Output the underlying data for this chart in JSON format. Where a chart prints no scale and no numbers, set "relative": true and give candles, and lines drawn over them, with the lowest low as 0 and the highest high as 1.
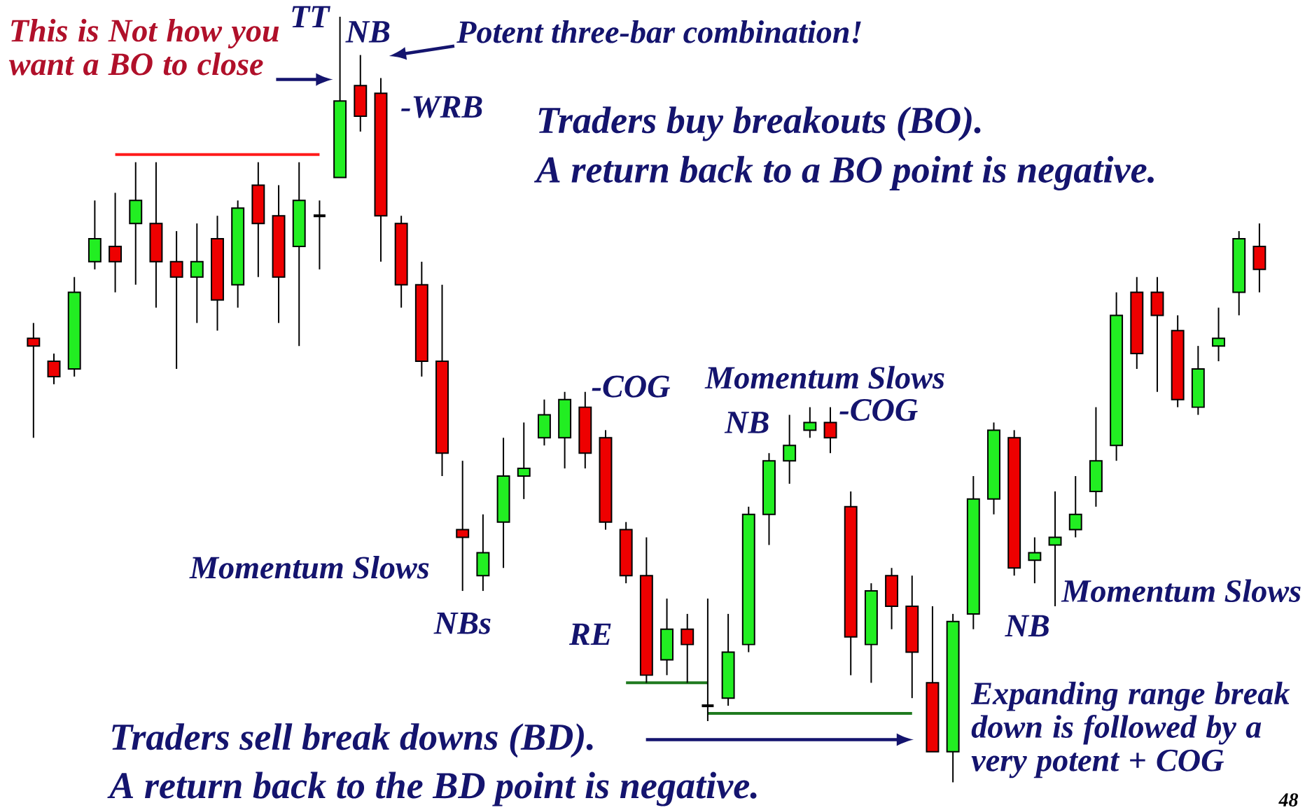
{
  "chart_data": {
    "type": "candlestick",
    "relative": true,
    "categories": [
      null,
      null,
      null,
      null,
      null,
      null,
      null,
      null,
      null,
      null,
      null,
      null,
      null,
      null,
      null,
      null,
      null,
      null,
      null,
      null,
      null,
      null,
      null,
      null,
      null,
      null,
      null,
      null,
      null,
      null,
      null,
      null,
      null,
      null,
      null,
      null,
      null,
      null,
      null,
      null,
      null,
      null,
      null,
      null,
      null,
      null,
      null,
      null,
      null,
      null,
      null,
      null,
      null,
      null,
      null,
      null,
      null,
      null,
      null,
      null,
      null
    ],
    "ohlc": [
      [
        0.58,
        0.6,
        0.45,
        0.57
      ],
      [
        0.55,
        0.56,
        0.52,
        0.53
      ],
      [
        0.54,
        0.66,
        0.53,
        0.64
      ],
      [
        0.68,
        0.76,
        0.67,
        0.71
      ],
      [
        0.7,
        0.77,
        0.64,
        0.68
      ],
      [
        0.73,
        0.81,
        0.65,
        0.76
      ],
      [
        0.73,
        0.81,
        0.62,
        0.68
      ],
      [
        0.68,
        0.72,
        0.54,
        0.66
      ],
      [
        0.66,
        0.73,
        0.6,
        0.68
      ],
      [
        0.71,
        0.74,
        0.59,
        0.63
      ],
      [
        0.65,
        0.76,
        0.62,
        0.75
      ],
      [
        0.78,
        0.81,
        0.66,
        0.73
      ],
      [
        0.74,
        0.78,
        0.6,
        0.66
      ],
      [
        0.7,
        0.81,
        0.57,
        0.76
      ],
      [
        0.74,
        0.76,
        0.67,
        0.74
      ],
      [
        0.79,
        1.0,
        0.79,
        0.89
      ],
      [
        0.91,
        0.95,
        0.85,
        0.87
      ],
      [
        0.9,
        0.92,
        0.68,
        0.74
      ],
      [
        0.73,
        0.74,
        0.62,
        0.65
      ],
      [
        0.65,
        0.68,
        0.53,
        0.55
      ],
      [
        0.55,
        0.65,
        0.4,
        0.43
      ],
      [
        0.33,
        0.42,
        0.25,
        0.32
      ],
      [
        0.27,
        0.35,
        0.25,
        0.3
      ],
      [
        0.34,
        0.45,
        0.28,
        0.4
      ],
      [
        0.4,
        0.47,
        0.37,
        0.41
      ],
      [
        0.45,
        0.5,
        0.44,
        0.48
      ],
      [
        0.45,
        0.51,
        0.41,
        0.5
      ],
      [
        0.49,
        0.51,
        0.41,
        0.43
      ],
      [
        0.45,
        0.46,
        0.33,
        0.34
      ],
      [
        0.33,
        0.34,
        0.26,
        0.27
      ],
      [
        0.27,
        0.32,
        0.13,
        0.14
      ],
      [
        0.16,
        0.24,
        0.14,
        0.2
      ],
      [
        0.2,
        0.22,
        0.13,
        0.18
      ],
      [
        0.1,
        0.24,
        0.08,
        0.1
      ],
      [
        0.11,
        0.22,
        0.1,
        0.17
      ],
      [
        0.18,
        0.36,
        0.17,
        0.35
      ],
      [
        0.35,
        0.43,
        0.31,
        0.42
      ],
      [
        0.42,
        0.48,
        0.39,
        0.44
      ],
      [
        0.46,
        0.49,
        0.45,
        0.47
      ],
      [
        0.47,
        0.49,
        0.43,
        0.45
      ],
      [
        0.36,
        0.38,
        0.14,
        0.19
      ],
      [
        0.18,
        0.26,
        0.13,
        0.25
      ],
      [
        0.27,
        0.28,
        0.2,
        0.23
      ],
      [
        0.23,
        0.27,
        0.11,
        0.17
      ],
      [
        0.13,
        0.23,
        0.04,
        0.04
      ],
      [
        0.04,
        0.22,
        0,
        0.21
      ],
      [
        0.22,
        0.4,
        0.2,
        0.37
      ],
      [
        0.37,
        0.47,
        0.35,
        0.46
      ],
      [
        0.45,
        0.46,
        0.27,
        0.28
      ],
      [
        0.29,
        0.32,
        0.26,
        0.3
      ],
      [
        0.31,
        0.38,
        0.23,
        0.32
      ],
      [
        0.33,
        0.4,
        0.32,
        0.35
      ],
      [
        0.38,
        0.49,
        0.36,
        0.42
      ],
      [
        0.44,
        0.64,
        0.42,
        0.61
      ],
      [
        0.64,
        0.66,
        0.54,
        0.56
      ],
      [
        0.64,
        0.66,
        0.51,
        0.61
      ],
      [
        0.59,
        0.61,
        0.49,
        0.5
      ],
      [
        0.49,
        0.57,
        0.48,
        0.54
      ],
      [
        0.57,
        0.62,
        0.55,
        0.58
      ],
      [
        0.64,
        0.72,
        0.61,
        0.71
      ],
      [
        0.7,
        0.73,
        0.64,
        0.67
      ]
    ],
    "colors": [
      "#ee0000",
      "#ee0000",
      "#22ee22",
      "#22ee22",
      "#ee0000",
      "#22ee22",
      "#ee0000",
      "#ee0000",
      "#22ee22",
      "#ee0000",
      "#22ee22",
      "#ee0000",
      "#ee0000",
      "#22ee22",
      "#000000",
      "#22ee22",
      "#ee0000",
      "#ee0000",
      "#ee0000",
      "#ee0000",
      "#ee0000",
      "#ee0000",
      "#22ee22",
      "#22ee22",
      "#22ee22",
      "#22ee22",
      "#22ee22",
      "#ee0000",
      "#ee0000",
      "#ee0000",
      "#ee0000",
      "#22ee22",
      "#ee0000",
      "#000000",
      "#22ee22",
      "#22ee22",
      "#22ee22",
      "#22ee22",
      "#22ee22",
      "#ee0000",
      "#ee0000",
      "#22ee22",
      "#ee0000",
      "#ee0000",
      "#ee0000",
      "#22ee22",
      "#22ee22",
      "#22ee22",
      "#ee0000",
      "#22ee22",
      "#22ee22",
      "#22ee22",
      "#22ee22",
      "#22ee22",
      "#ee0000",
      "#ee0000",
      "#ee0000",
      "#22ee22",
      "#22ee22",
      "#22ee22",
      "#ee0000"
    ],
    "series": [
      {
        "type": "line",
        "color": "#ff1a1a",
        "values": [
          null,
          null,
          null,
          null,
          0.82,
          0.82,
          0.82,
          0.82,
          0.82,
          0.82,
          0.82,
          0.82,
          0.82,
          0.82,
          0.82,
          null,
          null,
          null,
          null,
          null,
          null,
          null,
          null,
          null,
          null,
          null,
          null,
          null,
          null,
          null,
          null,
          null,
          null,
          null,
          null,
          null,
          null,
          null,
          null,
          null,
          null,
          null,
          null,
          null,
          null,
          null,
          null,
          null,
          null,
          null,
          null,
          null,
          null,
          null,
          null,
          null,
          null,
          null,
          null,
          null,
          null
        ]
      },
      {
        "type": "line",
        "color": "#1f7a1f",
        "values": [
          null,
          null,
          null,
          null,
          null,
          null,
          null,
          null,
          null,
          null,
          null,
          null,
          null,
          null,
          null,
          null,
          null,
          null,
          null,
          null,
          null,
          null,
          null,
          null,
          null,
          null,
          null,
          null,
          null,
          0.13,
          0.13,
          0.13,
          0.13,
          0.13,
          null,
          null,
          null,
          null,
          null,
          null,
          null,
          null,
          null,
          null,
          null,
          null,
          null,
          null,
          null,
          null,
          null,
          null,
          null,
          null,
          null,
          null,
          null,
          null,
          null,
          null,
          null
        ]
      },
      {
        "type": "line",
        "color": "#1f7a1f",
        "values": [
          null,
          null,
          null,
          null,
          null,
          null,
          null,
          null,
          null,
          null,
          null,
          null,
          null,
          null,
          null,
          null,
          null,
          null,
          null,
          null,
          null,
          null,
          null,
          null,
          null,
          null,
          null,
          null,
          null,
          null,
          null,
          null,
          null,
          0.09,
          0.09,
          0.09,
          0.09,
          0.09,
          0.09,
          0.09,
          0.09,
          0.09,
          0.09,
          0.09,
          null,
          null,
          null,
          null,
          null,
          null,
          null,
          null,
          null,
          null,
          null,
          null,
          null,
          null,
          null,
          null,
          null
        ]
      }
    ],
    "annotations": [
      "This is Not how you want a BO to close",
      "TT",
      "NB",
      "Potent three-bar combination!",
      "-WRB",
      "Traders buy breakouts (BO).",
      "A return back to a BO point is negative.",
      "-COG",
      "Momentum Slows",
      "NB",
      "-COG",
      "Momentum Slows",
      "NBs",
      "RE",
      "Momentum Slows",
      "NB",
      "Traders sell break downs (BD).",
      "A return back to the BD point is negative.",
      "Expanding range break down is followed by a very potent + COG",
      "48"
    ]
  }
}
